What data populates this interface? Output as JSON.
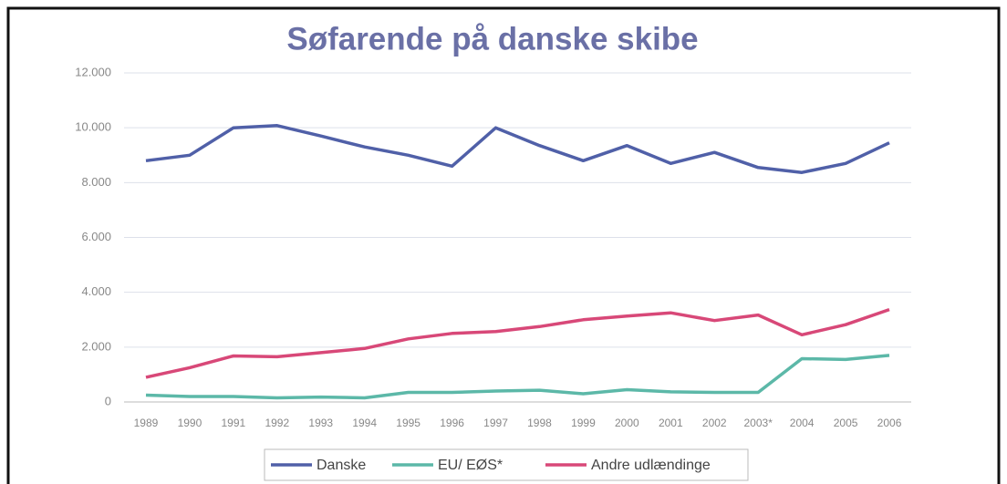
{
  "chart_data": {
    "type": "line",
    "title": "Søfarende på danske skibe",
    "categories": [
      "1989",
      "1990",
      "1991",
      "1992",
      "1993",
      "1994",
      "1995",
      "1996",
      "1997",
      "1998",
      "1999",
      "2000",
      "2001",
      "2002",
      "2003*",
      "2004",
      "2005",
      "2006"
    ],
    "series": [
      {
        "name": "Danske",
        "color": "#5060a8",
        "values": [
          8800,
          9000,
          10000,
          10080,
          9700,
          9300,
          9000,
          8600,
          10000,
          9350,
          8800,
          9350,
          8700,
          9100,
          8550,
          8370,
          8700,
          9450
        ]
      },
      {
        "name": "EU/ EØS*",
        "color": "#5cb8a8",
        "values": [
          250,
          200,
          200,
          150,
          180,
          150,
          350,
          350,
          400,
          430,
          300,
          450,
          370,
          350,
          350,
          1580,
          1550,
          1700
        ]
      },
      {
        "name": "Andre udlændinge",
        "color": "#d84878",
        "values": [
          900,
          1250,
          1680,
          1650,
          1800,
          1950,
          2300,
          2500,
          2570,
          2750,
          3000,
          3130,
          3250,
          2970,
          3170,
          2450,
          2820,
          3370
        ]
      }
    ],
    "ylim": [
      0,
      12000
    ],
    "yticks": [
      0,
      {
        "value": 2000,
        "label": "2.000"
      },
      {
        "value": 4000,
        "label": "4.000"
      },
      {
        "value": 6000,
        "label": "6.000"
      },
      {
        "value": 8000,
        "label": "8.000"
      },
      {
        "value": 10000,
        "label": "10.000"
      },
      {
        "value": 12000,
        "label": "12.000"
      }
    ],
    "grid": true,
    "legend": "bottom"
  }
}
